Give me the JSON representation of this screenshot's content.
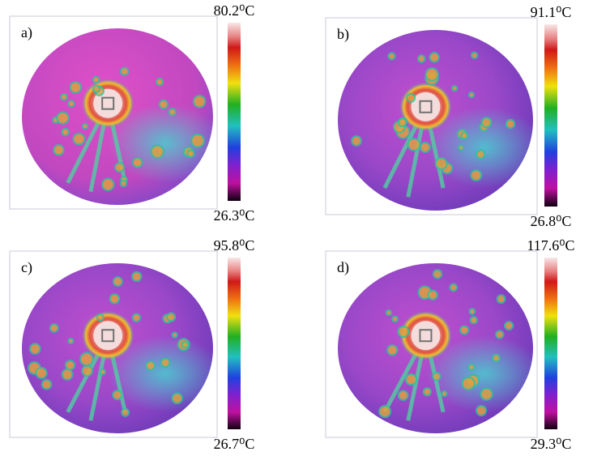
{
  "panels": [
    {
      "label": "a)",
      "max": "80.2⁰C",
      "min": "26.3⁰C"
    },
    {
      "label": "b)",
      "max": "91.1⁰C",
      "min": "26.8⁰C"
    },
    {
      "label": "c)",
      "max": "95.8⁰C",
      "min": "26.7⁰C"
    },
    {
      "label": "d)",
      "max": "117.6⁰C",
      "min": "29.3⁰C"
    }
  ]
}
